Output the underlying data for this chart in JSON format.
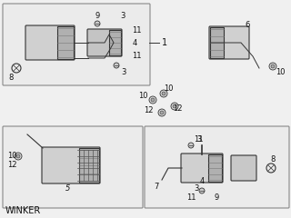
{
  "title": "WINKER",
  "background_color": "#f0f0f0",
  "line_color": "#333333",
  "figsize": [
    3.2,
    2.4
  ],
  "dpi": 100,
  "text_color": "#111111"
}
